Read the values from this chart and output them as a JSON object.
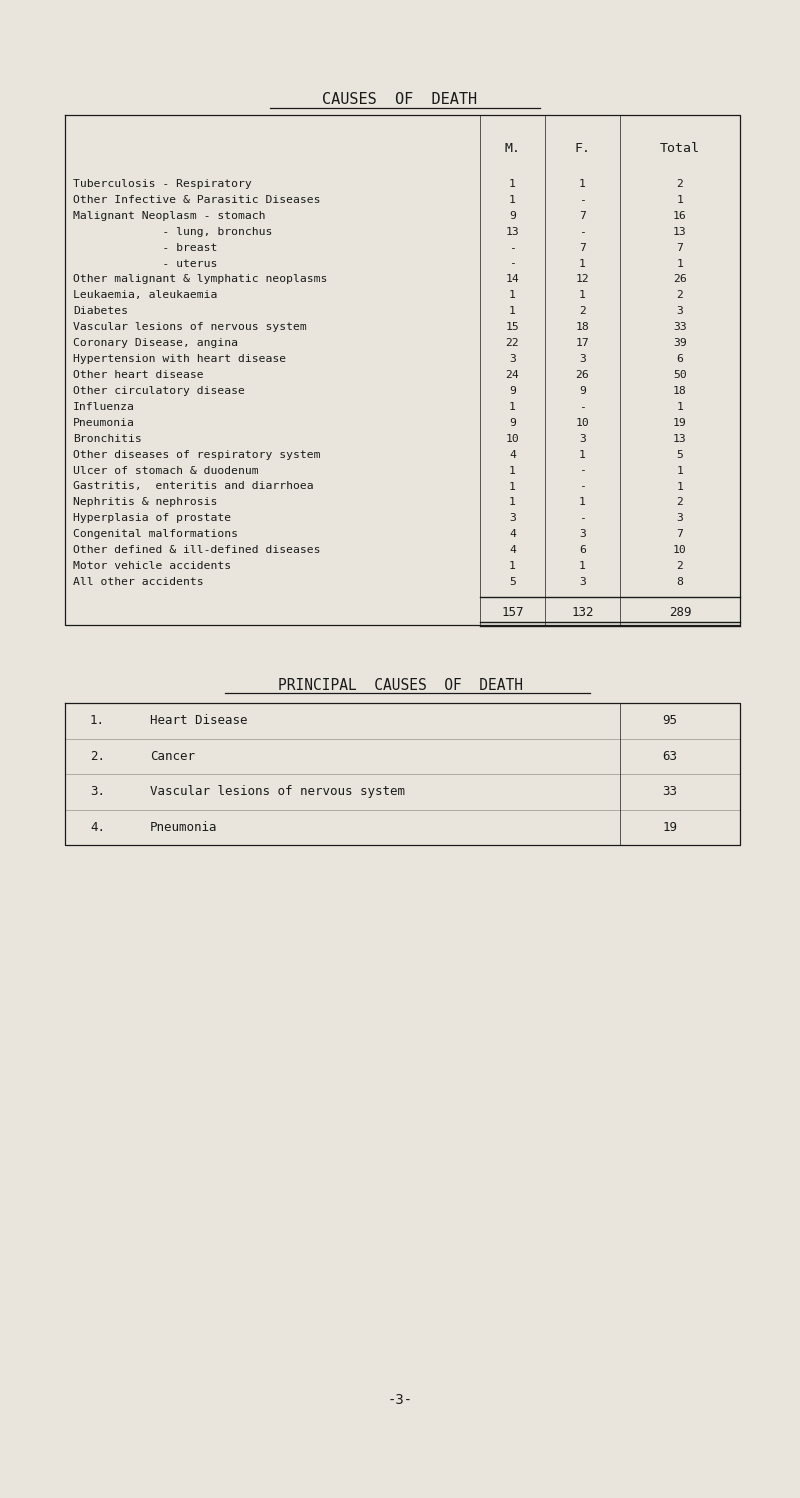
{
  "title": "CAUSES  OF  DEATH",
  "bg_color": "#e9e5dd",
  "text_color": "#1a1a1a",
  "font_family": "DejaVu Sans Mono",
  "table_rows": [
    {
      "label": "Tuberculosis - Respiratory",
      "m": "1",
      "f": "1",
      "total": "2"
    },
    {
      "label": "Other Infective & Parasitic Diseases",
      "m": "1",
      "f": "-",
      "total": "1"
    },
    {
      "label": "Malignant Neoplasm - stomach",
      "m": "9",
      "f": "7",
      "total": "16"
    },
    {
      "label": "             - lung, bronchus",
      "m": "13",
      "f": "-",
      "total": "13"
    },
    {
      "label": "             - breast",
      "m": "-",
      "f": "7",
      "total": "7"
    },
    {
      "label": "             - uterus",
      "m": "-",
      "f": "1",
      "total": "1"
    },
    {
      "label": "Other malignant & lymphatic neoplasms",
      "m": "14",
      "f": "12",
      "total": "26"
    },
    {
      "label": "Leukaemia, aleukaemia",
      "m": "1",
      "f": "1",
      "total": "2"
    },
    {
      "label": "Diabetes",
      "m": "1",
      "f": "2",
      "total": "3"
    },
    {
      "label": "Vascular lesions of nervous system",
      "m": "15",
      "f": "18",
      "total": "33"
    },
    {
      "label": "Coronary Disease, angina",
      "m": "22",
      "f": "17",
      "total": "39"
    },
    {
      "label": "Hypertension with heart disease",
      "m": "3",
      "f": "3",
      "total": "6"
    },
    {
      "label": "Other heart disease",
      "m": "24",
      "f": "26",
      "total": "50"
    },
    {
      "label": "Other circulatory disease",
      "m": "9",
      "f": "9",
      "total": "18"
    },
    {
      "label": "Influenza",
      "m": "1",
      "f": "-",
      "total": "1"
    },
    {
      "label": "Pneumonia",
      "m": "9",
      "f": "10",
      "total": "19"
    },
    {
      "label": "Bronchitis",
      "m": "10",
      "f": "3",
      "total": "13"
    },
    {
      "label": "Other diseases of respiratory system",
      "m": "4",
      "f": "1",
      "total": "5"
    },
    {
      "label": "Ulcer of stomach & duodenum",
      "m": "1",
      "f": "-",
      "total": "1"
    },
    {
      "label": "Gastritis,  enteritis and diarrhoea",
      "m": "1",
      "f": "-",
      "total": "1"
    },
    {
      "label": "Nephritis & nephrosis",
      "m": "1",
      "f": "1",
      "total": "2"
    },
    {
      "label": "Hyperplasia of prostate",
      "m": "3",
      "f": "-",
      "total": "3"
    },
    {
      "label": "Congenital malformations",
      "m": "4",
      "f": "3",
      "total": "7"
    },
    {
      "label": "Other defined & ill-defined diseases",
      "m": "4",
      "f": "6",
      "total": "10"
    },
    {
      "label": "Motor vehicle accidents",
      "m": "1",
      "f": "1",
      "total": "2"
    },
    {
      "label": "All other accidents",
      "m": "5",
      "f": "3",
      "total": "8"
    }
  ],
  "total_row": {
    "m": "157",
    "f": "132",
    "total": "289"
  },
  "principal_title": "PRINCIPAL  CAUSES  OF  DEATH",
  "principal_rows": [
    {
      "num": "1.",
      "label": "Heart Disease",
      "value": "95"
    },
    {
      "num": "2.",
      "label": "Cancer",
      "value": "63"
    },
    {
      "num": "3.",
      "label": "Vascular lesions of nervous system",
      "value": "33"
    },
    {
      "num": "4.",
      "label": "Pneumonia",
      "value": "19"
    }
  ],
  "page_number": "-3-",
  "col_headers": {
    "m": "M.",
    "f": "F.",
    "total": "Total"
  }
}
